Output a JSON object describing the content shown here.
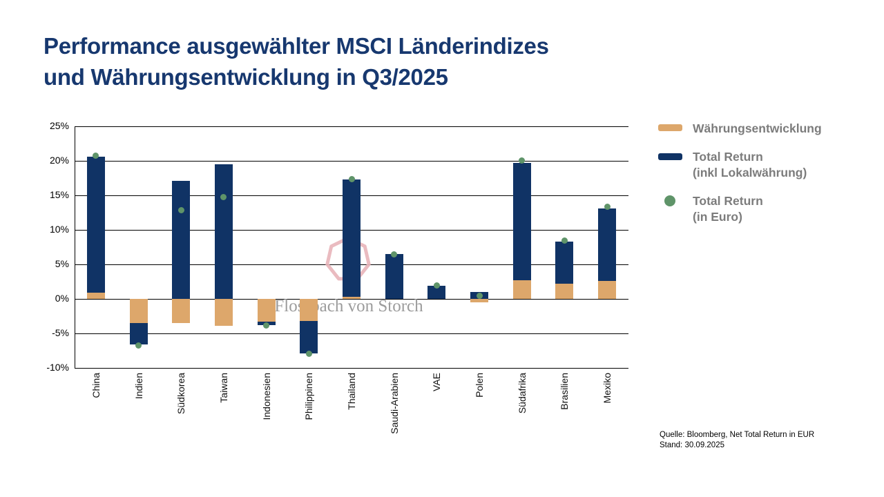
{
  "title": {
    "line1": "Performance ausgewählter MSCI Länderindizes",
    "line2": "und Währungsentwicklung in Q3/2025"
  },
  "colors": {
    "navy": "#103365",
    "orange": "#dda76b",
    "green": "#5f9469",
    "title_blue": "#17386f",
    "legend_text": "#7c7c7c",
    "watermark_pink": "#e8b4b9",
    "watermark_text": "#9c9c9c",
    "grid": "#000000"
  },
  "legend": {
    "items": [
      {
        "swatch": "orange",
        "line1": "Währungsentwicklung",
        "line2": ""
      },
      {
        "swatch": "navy",
        "line1": "Total Return",
        "line2": "(inkl Lokalwährung)"
      },
      {
        "swatch": "green",
        "line1": "Total Return",
        "line2": "(in Euro)"
      }
    ]
  },
  "watermark": {
    "text": "Flossbach von Storch",
    "shape": "heptagon-outline"
  },
  "source": {
    "line1": "Quelle: Bloomberg, Net Total Return in EUR",
    "line2": "Stand: 30.09.2025"
  },
  "chart_data": {
    "type": "bar",
    "stacked": true,
    "title": "Performance ausgewählter MSCI Länderindizes und Währungsentwicklung in Q3/2025",
    "categories": [
      "China",
      "Indien",
      "Südkorea",
      "Taiwan",
      "Indonesien",
      "Philippinen",
      "Thailand",
      "Saudi-Arabien",
      "VAE",
      "Polen",
      "Südafrika",
      "Brasilien",
      "Mexiko"
    ],
    "series": [
      {
        "name": "Währungsentwicklung",
        "mark": "bar",
        "color": "#dda76b",
        "values": [
          0.9,
          -3.5,
          -3.5,
          -3.9,
          -3.3,
          -3.2,
          0.3,
          0,
          0,
          -0.5,
          2.7,
          2.2,
          2.6
        ]
      },
      {
        "name": "Total Return (inkl Lokalwährung)",
        "mark": "bar",
        "color": "#103365",
        "values": [
          19.7,
          -3.1,
          17.1,
          19.5,
          -0.5,
          -4.7,
          17.0,
          6.5,
          1.9,
          1.0,
          17.0,
          6.1,
          10.5
        ]
      },
      {
        "name": "Total Return (in Euro)",
        "mark": "point",
        "color": "#5f9469",
        "values": [
          20.8,
          -6.7,
          12.9,
          14.8,
          -3.8,
          -7.9,
          17.4,
          6.5,
          2.0,
          0.5,
          20.1,
          8.5,
          13.4
        ]
      }
    ],
    "ylim": [
      -10,
      25
    ],
    "yticks": [
      25,
      20,
      15,
      10,
      5,
      0,
      -5,
      -10
    ],
    "ytick_suffix": "%",
    "grid": "horizontal",
    "legend_position": "right"
  }
}
